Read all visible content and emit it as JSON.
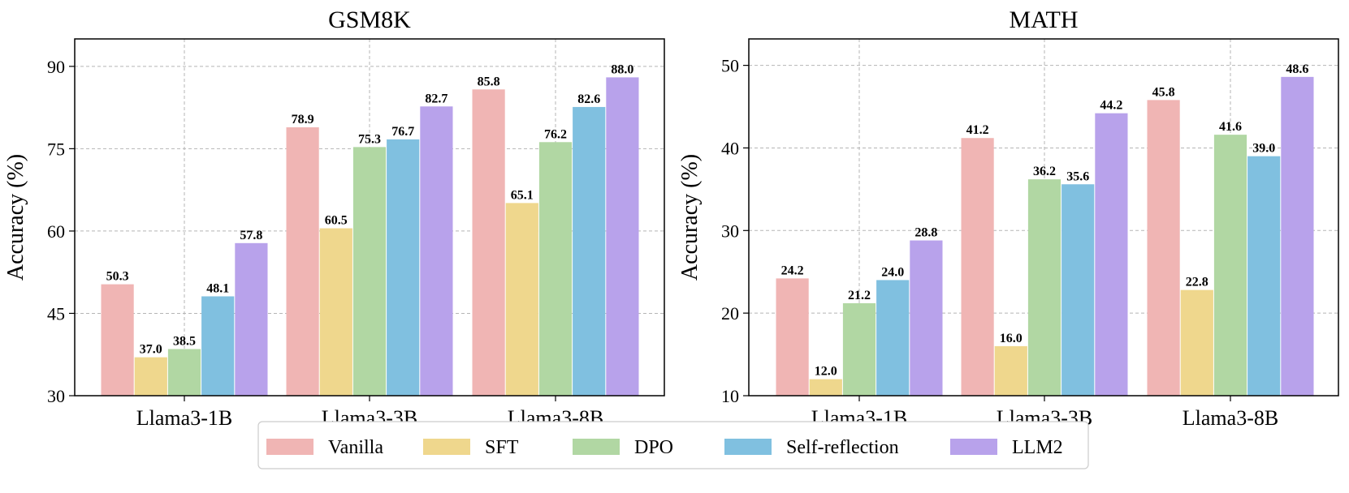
{
  "chart_data": [
    {
      "type": "bar",
      "title": "GSM8K",
      "xlabel": "",
      "ylabel": "Accuracy (%)",
      "ylim": [
        30,
        95
      ],
      "yticks": [
        30,
        45,
        60,
        75,
        90
      ],
      "grid": true,
      "categories": [
        "Llama3-1B",
        "Llama3-3B",
        "Llama3-8B"
      ],
      "series": [
        {
          "name": "Vanilla",
          "color": "#f0b5b4",
          "values": [
            50.3,
            78.9,
            85.8
          ]
        },
        {
          "name": "SFT",
          "color": "#efd78d",
          "values": [
            37.0,
            60.5,
            65.1
          ]
        },
        {
          "name": "DPO",
          "color": "#b1d7a3",
          "values": [
            38.5,
            75.3,
            76.2
          ]
        },
        {
          "name": "Self-reflection",
          "color": "#80c0e0",
          "values": [
            48.1,
            76.7,
            82.6
          ]
        },
        {
          "name": "LLM2",
          "color": "#b8a2eb",
          "values": [
            57.8,
            82.7,
            88.0
          ]
        }
      ]
    },
    {
      "type": "bar",
      "title": "MATH",
      "xlabel": "",
      "ylabel": "Accuracy (%)",
      "ylim": [
        10,
        53.2
      ],
      "yticks": [
        10,
        20,
        30,
        40,
        50
      ],
      "grid": true,
      "categories": [
        "Llama3-1B",
        "Llama3-3B",
        "Llama3-8B"
      ],
      "series": [
        {
          "name": "Vanilla",
          "color": "#f0b5b4",
          "values": [
            24.2,
            41.2,
            45.8
          ]
        },
        {
          "name": "SFT",
          "color": "#efd78d",
          "values": [
            12.0,
            16.0,
            22.8
          ]
        },
        {
          "name": "DPO",
          "color": "#b1d7a3",
          "values": [
            21.2,
            36.2,
            41.6
          ]
        },
        {
          "name": "Self-reflection",
          "color": "#80c0e0",
          "values": [
            24.0,
            35.6,
            39.0
          ]
        },
        {
          "name": "LLM2",
          "color": "#b8a2eb",
          "values": [
            28.8,
            44.2,
            48.6
          ]
        }
      ]
    }
  ],
  "legend": {
    "placement": "bottom-center",
    "entries": [
      {
        "label": "Vanilla",
        "color": "#f0b5b4"
      },
      {
        "label": "SFT",
        "color": "#efd78d"
      },
      {
        "label": "DPO",
        "color": "#b1d7a3"
      },
      {
        "label": "Self-reflection",
        "color": "#80c0e0"
      },
      {
        "label": "LLM2",
        "color": "#b8a2eb"
      }
    ]
  }
}
